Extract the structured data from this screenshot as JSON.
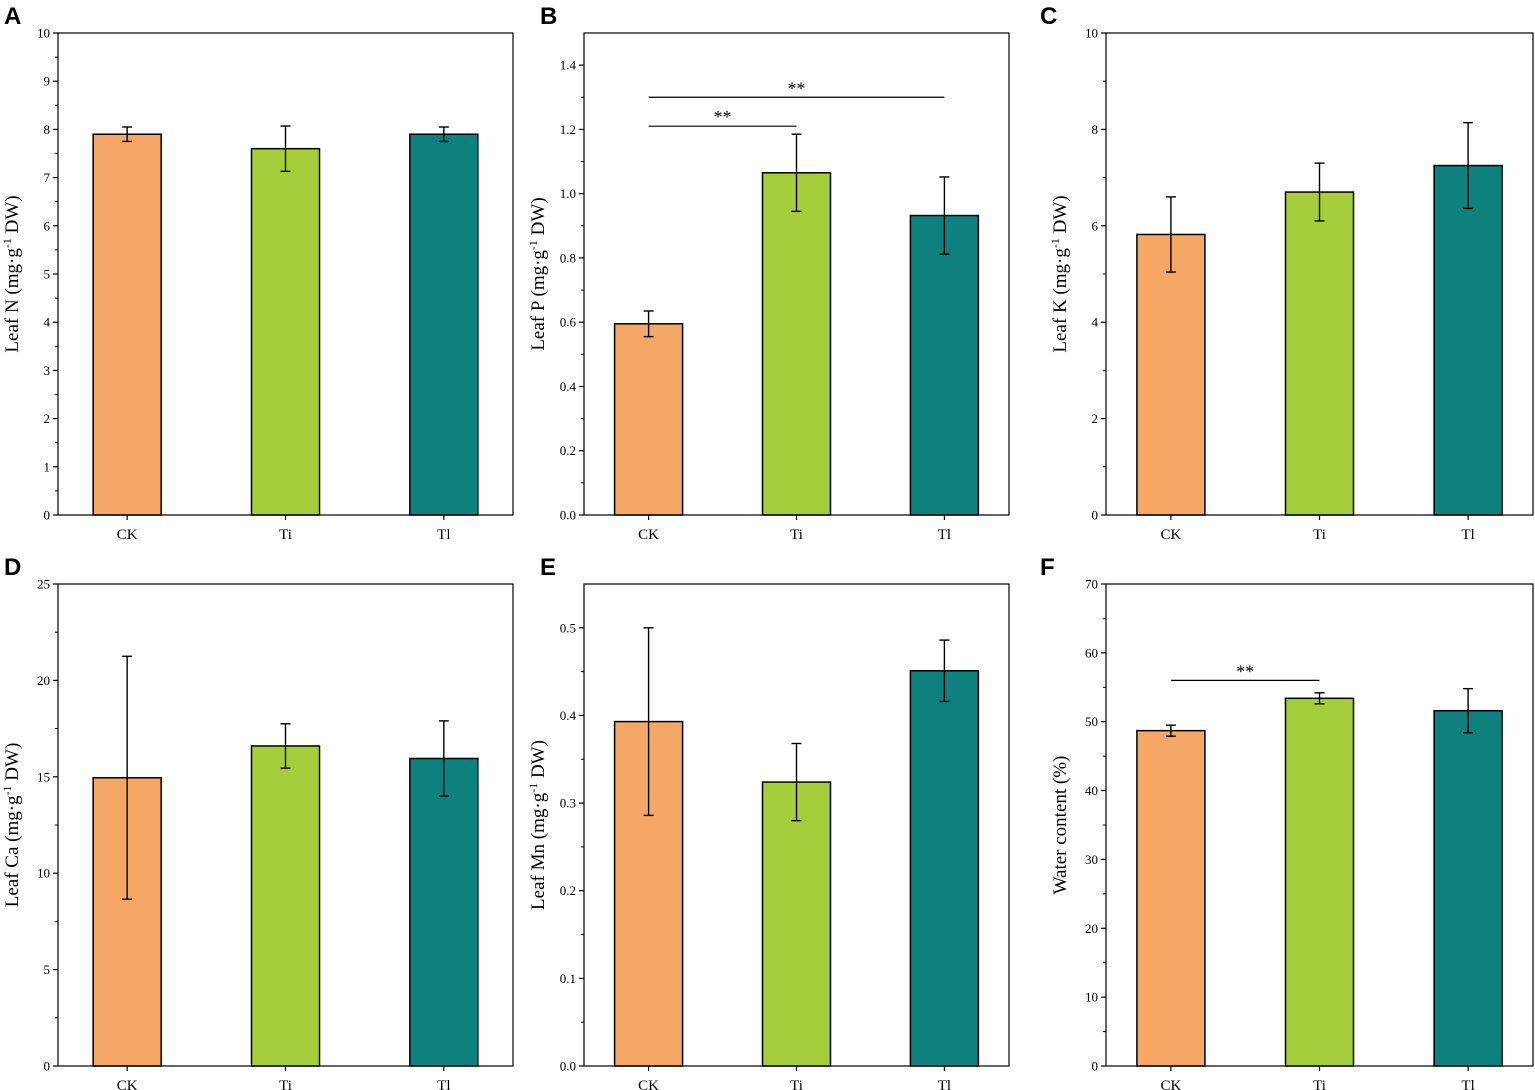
{
  "colors": {
    "CK": "#F5A866",
    "Ti": "#A6CD3A",
    "Tl": "#0E807E"
  },
  "chart_data": [
    {
      "type": "bar",
      "panel": "A",
      "categories": [
        "CK",
        "Ti",
        "Tl"
      ],
      "values": [
        7.9,
        7.6,
        7.9
      ],
      "errors": [
        0.15,
        0.47,
        0.15
      ],
      "ylabel": "Leaf N (mg·g",
      "ylabel_sup": "-1",
      "ylabel_tail": " DW)",
      "ylim": [
        0,
        10
      ],
      "yticks": [
        0,
        1,
        2,
        3,
        4,
        5,
        6,
        7,
        8,
        9,
        10
      ],
      "ytick_labels": [
        "0",
        "1",
        "2",
        "3",
        "4",
        "5",
        "6",
        "7",
        "8",
        "9",
        "10"
      ],
      "significance": []
    },
    {
      "type": "bar",
      "panel": "B",
      "categories": [
        "CK",
        "Ti",
        "Tl"
      ],
      "values": [
        0.595,
        1.065,
        0.932
      ],
      "errors": [
        0.04,
        0.12,
        0.12
      ],
      "ylabel": "Leaf P (mg·g",
      "ylabel_sup": "-1",
      "ylabel_tail": " DW)",
      "ylim": [
        0,
        1.5
      ],
      "yticks": [
        0,
        0.2,
        0.4,
        0.6,
        0.8,
        1.0,
        1.2,
        1.4
      ],
      "ytick_labels": [
        "0.0",
        "0.2",
        "0.4",
        "0.6",
        "0.8",
        "1.0",
        "1.2",
        "1.4"
      ],
      "significance": [
        {
          "from": "CK",
          "to": "Tl",
          "y": 1.3,
          "label": "**"
        },
        {
          "from": "CK",
          "to": "Ti",
          "y": 1.21,
          "label": "**"
        }
      ]
    },
    {
      "type": "bar",
      "panel": "C",
      "categories": [
        "CK",
        "Ti",
        "Tl"
      ],
      "values": [
        5.82,
        6.7,
        7.25
      ],
      "errors": [
        0.78,
        0.6,
        0.89
      ],
      "ylabel": "Leaf K (mg·g",
      "ylabel_sup": "-1",
      "ylabel_tail": " DW)",
      "ylim": [
        0,
        10
      ],
      "yticks": [
        0,
        2,
        4,
        6,
        8,
        10
      ],
      "ytick_labels": [
        "0",
        "2",
        "4",
        "6",
        "8",
        "10"
      ],
      "significance": []
    },
    {
      "type": "bar",
      "panel": "D",
      "categories": [
        "CK",
        "Ti",
        "Tl"
      ],
      "values": [
        14.95,
        16.6,
        15.95
      ],
      "errors": [
        6.3,
        1.15,
        1.95
      ],
      "ylabel": "Leaf Ca (mg·g",
      "ylabel_sup": "-1",
      "ylabel_tail": " DW)",
      "ylim": [
        0,
        25
      ],
      "yticks": [
        0,
        5,
        10,
        15,
        20,
        25
      ],
      "ytick_labels": [
        "0",
        "5",
        "10",
        "15",
        "20",
        "25"
      ],
      "significance": []
    },
    {
      "type": "bar",
      "panel": "E",
      "categories": [
        "CK",
        "Ti",
        "Tl"
      ],
      "values": [
        0.393,
        0.324,
        0.451
      ],
      "errors": [
        0.107,
        0.044,
        0.035
      ],
      "ylabel": "Leaf Mn (mg·g",
      "ylabel_sup": "-1",
      "ylabel_tail": " DW)",
      "ylim": [
        0,
        0.55
      ],
      "yticks": [
        0,
        0.1,
        0.2,
        0.3,
        0.4,
        0.5
      ],
      "ytick_labels": [
        "0.0",
        "0.1",
        "0.2",
        "0.3",
        "0.4",
        "0.5"
      ],
      "significance": []
    },
    {
      "type": "bar",
      "panel": "F",
      "categories": [
        "CK",
        "Ti",
        "Tl"
      ],
      "values": [
        48.7,
        53.4,
        51.6
      ],
      "errors": [
        0.8,
        0.8,
        3.2
      ],
      "ylabel": "Water content (%)",
      "ylabel_sup": "",
      "ylabel_tail": "",
      "ylim": [
        0,
        70
      ],
      "yticks": [
        0,
        10,
        20,
        30,
        40,
        50,
        60,
        70
      ],
      "ytick_labels": [
        "0",
        "10",
        "20",
        "30",
        "40",
        "50",
        "60",
        "70"
      ],
      "significance": [
        {
          "from": "CK",
          "to": "Ti",
          "y": 56,
          "label": "**"
        }
      ]
    }
  ]
}
